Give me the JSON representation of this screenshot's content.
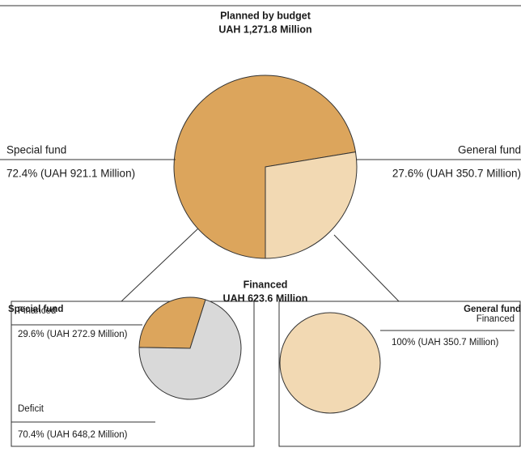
{
  "chart_data": [
    {
      "type": "pie",
      "title": "Planned by budget",
      "subtitle": "UAH 1,271.8 Million",
      "categories": [
        "Special fund",
        "General fund"
      ],
      "values": [
        72.4,
        27.6
      ],
      "value_labels": [
        "72.4% (UAH 921.1 Million)",
        "27.6% (UAH 350.7 Million)"
      ],
      "colors": [
        "#dca55c",
        "#f2d9b3"
      ]
    },
    {
      "type": "pie",
      "title": "Special fund",
      "categories": [
        "Financed",
        "Deficit"
      ],
      "values": [
        29.6,
        70.4
      ],
      "value_labels": [
        "29.6% (UAH 272.9 Million)",
        "70.4% (UAH 648,2 Million)"
      ],
      "colors": [
        "#dca55c",
        "#d9d9d9"
      ]
    },
    {
      "type": "pie",
      "title": "General fund",
      "categories": [
        "Financed"
      ],
      "values": [
        100
      ],
      "value_labels": [
        "100% (UAH 350.7 Million)"
      ],
      "colors": [
        "#f2d9b3"
      ]
    }
  ],
  "financed_heading": {
    "title": "Financed",
    "subtitle": "UAH 623.6 Million"
  }
}
